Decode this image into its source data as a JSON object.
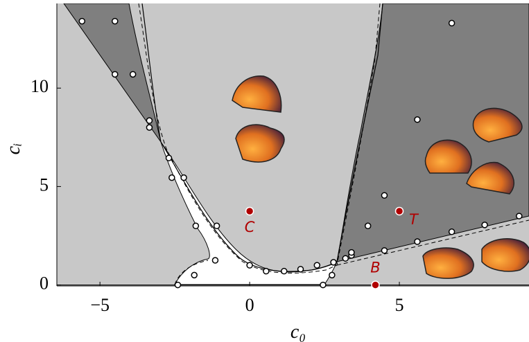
{
  "chart_data": {
    "type": "scatter",
    "x_label": "c₀",
    "y_label": "cᵢ",
    "xlim": [
      -6.44,
      9.33
    ],
    "ylim": [
      -0.05,
      14.3
    ],
    "xticks": [
      {
        "value": -5,
        "label": "−5"
      },
      0,
      5
    ],
    "yticks": [
      0,
      5,
      10
    ],
    "points": {
      "color": "#ffffff",
      "x": [
        -5.6,
        -4.5,
        -4.5,
        -3.9,
        -3.35,
        -3.35,
        -2.7,
        -2.6,
        -2.2,
        -1.8,
        -1.1,
        -1.15,
        -1.85,
        -2.4,
        0,
        0.55,
        1.15,
        1.7,
        2.25,
        2.45,
        2.75,
        2.8,
        3.2,
        3.4,
        3.4,
        3.95,
        4.5,
        4.5,
        5.6,
        5.6,
        6.75,
        6.75,
        7.85,
        9.0
      ],
      "y": [
        13.4,
        13.4,
        10.7,
        10.7,
        8.35,
        8.0,
        6.45,
        5.45,
        5.45,
        3.0,
        3.0,
        1.25,
        0.5,
        0,
        1.0,
        0.7,
        0.7,
        0.8,
        1.0,
        0,
        0.5,
        1.15,
        1.35,
        1.5,
        1.65,
        3.0,
        4.55,
        1.75,
        8.4,
        2.2,
        13.3,
        2.7,
        3.05,
        3.5
      ]
    },
    "marked_points": {
      "color": "#b00000",
      "labels": [
        "C",
        "T",
        "B"
      ],
      "x": [
        0,
        5.0,
        4.2
      ],
      "y": [
        3.75,
        3.75,
        0
      ]
    }
  }
}
